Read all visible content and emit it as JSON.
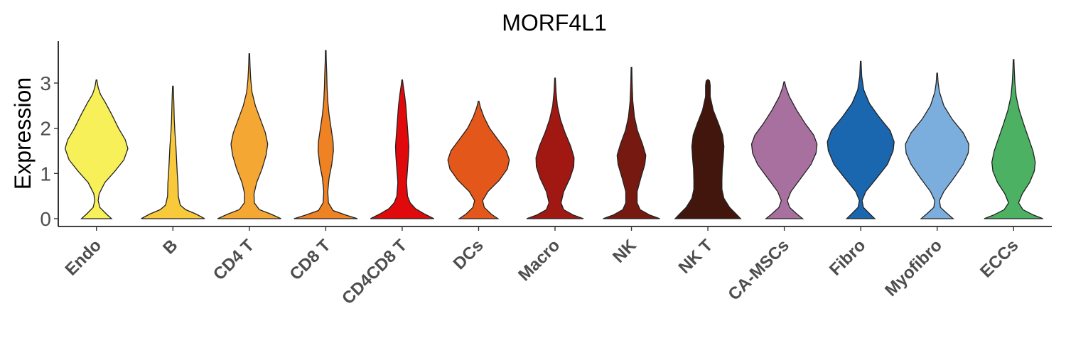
{
  "chart_data": {
    "type": "violin",
    "title": "MORF4L1",
    "xlabel": "",
    "ylabel": "Expression",
    "ylim": [
      -0.2,
      3.75
    ],
    "yticks": [
      0,
      1,
      2,
      3
    ],
    "grid": false,
    "legend": "none",
    "categories": [
      "Endo",
      "B",
      "CD4 T",
      "CD8 T",
      "CD4CD8 T",
      "DCs",
      "Macro",
      "NK",
      "NK T",
      "CA-MSCs",
      "Fibro",
      "Myofibro",
      "ECCs"
    ],
    "colors": [
      "#F7F058",
      "#F9C93C",
      "#F5A733",
      "#EF8223",
      "#E00A0C",
      "#E4571B",
      "#A11812",
      "#761A11",
      "#42160D",
      "#A8709F",
      "#1A66AF",
      "#7CAEDD",
      "#4CB162"
    ],
    "violins": [
      {
        "name": "Endo",
        "max": 3.07,
        "density": [
          [
            0,
            0.45
          ],
          [
            0.1,
            0.3
          ],
          [
            0.25,
            0.1
          ],
          [
            0.4,
            0.05
          ],
          [
            0.55,
            0.08
          ],
          [
            0.8,
            0.25
          ],
          [
            1.05,
            0.55
          ],
          [
            1.3,
            0.82
          ],
          [
            1.55,
            0.94
          ],
          [
            1.75,
            0.86
          ],
          [
            2.0,
            0.66
          ],
          [
            2.3,
            0.46
          ],
          [
            2.55,
            0.28
          ],
          [
            2.75,
            0.12
          ],
          [
            2.9,
            0.05
          ],
          [
            3.07,
            0.01
          ]
        ]
      },
      {
        "name": "B",
        "max": 2.93,
        "density": [
          [
            0,
            0.95
          ],
          [
            0.1,
            0.7
          ],
          [
            0.2,
            0.38
          ],
          [
            0.3,
            0.22
          ],
          [
            0.5,
            0.16
          ],
          [
            0.8,
            0.15
          ],
          [
            1.0,
            0.13
          ],
          [
            1.3,
            0.11
          ],
          [
            1.6,
            0.09
          ],
          [
            1.9,
            0.06
          ],
          [
            2.2,
            0.04
          ],
          [
            2.5,
            0.03
          ],
          [
            2.75,
            0.02
          ],
          [
            2.93,
            0.01
          ]
        ]
      },
      {
        "name": "CD4 T",
        "max": 3.65,
        "density": [
          [
            0,
            0.95
          ],
          [
            0.1,
            0.65
          ],
          [
            0.2,
            0.3
          ],
          [
            0.35,
            0.15
          ],
          [
            0.55,
            0.14
          ],
          [
            0.8,
            0.22
          ],
          [
            1.1,
            0.38
          ],
          [
            1.4,
            0.5
          ],
          [
            1.65,
            0.55
          ],
          [
            1.9,
            0.48
          ],
          [
            2.2,
            0.33
          ],
          [
            2.5,
            0.18
          ],
          [
            2.8,
            0.08
          ],
          [
            3.1,
            0.04
          ],
          [
            3.4,
            0.02
          ],
          [
            3.65,
            0.01
          ]
        ]
      },
      {
        "name": "CD8 T",
        "max": 3.72,
        "density": [
          [
            0,
            0.95
          ],
          [
            0.08,
            0.6
          ],
          [
            0.18,
            0.22
          ],
          [
            0.35,
            0.08
          ],
          [
            0.6,
            0.06
          ],
          [
            0.9,
            0.1
          ],
          [
            1.2,
            0.18
          ],
          [
            1.5,
            0.23
          ],
          [
            1.7,
            0.22
          ],
          [
            2.0,
            0.16
          ],
          [
            2.3,
            0.1
          ],
          [
            2.6,
            0.06
          ],
          [
            2.9,
            0.04
          ],
          [
            3.2,
            0.03
          ],
          [
            3.5,
            0.015
          ],
          [
            3.72,
            0.01
          ]
        ]
      },
      {
        "name": "CD4CD8 T",
        "max": 3.07,
        "density": [
          [
            0,
            0.95
          ],
          [
            0.1,
            0.68
          ],
          [
            0.22,
            0.4
          ],
          [
            0.35,
            0.24
          ],
          [
            0.5,
            0.16
          ],
          [
            0.8,
            0.13
          ],
          [
            1.1,
            0.16
          ],
          [
            1.4,
            0.19
          ],
          [
            1.6,
            0.2
          ],
          [
            1.9,
            0.17
          ],
          [
            2.2,
            0.14
          ],
          [
            2.5,
            0.11
          ],
          [
            2.75,
            0.07
          ],
          [
            2.95,
            0.03
          ],
          [
            3.07,
            0.01
          ]
        ]
      },
      {
        "name": "DCs",
        "max": 2.6,
        "density": [
          [
            0,
            0.58
          ],
          [
            0.1,
            0.38
          ],
          [
            0.25,
            0.17
          ],
          [
            0.4,
            0.12
          ],
          [
            0.6,
            0.28
          ],
          [
            0.85,
            0.62
          ],
          [
            1.1,
            0.86
          ],
          [
            1.3,
            0.92
          ],
          [
            1.5,
            0.83
          ],
          [
            1.75,
            0.58
          ],
          [
            2.0,
            0.33
          ],
          [
            2.25,
            0.16
          ],
          [
            2.45,
            0.06
          ],
          [
            2.6,
            0.01
          ]
        ]
      },
      {
        "name": "Macro",
        "max": 3.11,
        "density": [
          [
            0,
            0.85
          ],
          [
            0.08,
            0.55
          ],
          [
            0.2,
            0.26
          ],
          [
            0.35,
            0.18
          ],
          [
            0.6,
            0.26
          ],
          [
            0.9,
            0.45
          ],
          [
            1.15,
            0.56
          ],
          [
            1.35,
            0.57
          ],
          [
            1.6,
            0.47
          ],
          [
            1.9,
            0.3
          ],
          [
            2.2,
            0.16
          ],
          [
            2.5,
            0.07
          ],
          [
            2.8,
            0.03
          ],
          [
            3.11,
            0.01
          ]
        ]
      },
      {
        "name": "NK",
        "max": 3.35,
        "density": [
          [
            0,
            0.85
          ],
          [
            0.08,
            0.55
          ],
          [
            0.2,
            0.26
          ],
          [
            0.35,
            0.17
          ],
          [
            0.6,
            0.17
          ],
          [
            0.9,
            0.28
          ],
          [
            1.2,
            0.4
          ],
          [
            1.4,
            0.43
          ],
          [
            1.65,
            0.33
          ],
          [
            1.95,
            0.18
          ],
          [
            2.25,
            0.09
          ],
          [
            2.6,
            0.04
          ],
          [
            3.0,
            0.02
          ],
          [
            3.35,
            0.01
          ]
        ]
      },
      {
        "name": "NK T",
        "max": 3.08,
        "density": [
          [
            0,
            0.98
          ],
          [
            0.1,
            0.85
          ],
          [
            0.25,
            0.65
          ],
          [
            0.45,
            0.48
          ],
          [
            0.65,
            0.42
          ],
          [
            0.85,
            0.42
          ],
          [
            1.1,
            0.43
          ],
          [
            1.35,
            0.46
          ],
          [
            1.6,
            0.48
          ],
          [
            1.85,
            0.44
          ],
          [
            2.1,
            0.32
          ],
          [
            2.4,
            0.16
          ],
          [
            2.7,
            0.07
          ],
          [
            2.95,
            0.07
          ],
          [
            3.05,
            0.05
          ],
          [
            3.08,
            0.0
          ]
        ]
      },
      {
        "name": "CA-MSCs",
        "max": 3.03,
        "density": [
          [
            0,
            0.55
          ],
          [
            0.1,
            0.38
          ],
          [
            0.25,
            0.16
          ],
          [
            0.4,
            0.09
          ],
          [
            0.6,
            0.2
          ],
          [
            0.9,
            0.5
          ],
          [
            1.2,
            0.8
          ],
          [
            1.45,
            0.95
          ],
          [
            1.65,
            0.98
          ],
          [
            1.85,
            0.88
          ],
          [
            2.1,
            0.63
          ],
          [
            2.4,
            0.37
          ],
          [
            2.7,
            0.15
          ],
          [
            2.9,
            0.05
          ],
          [
            3.03,
            0.01
          ]
        ]
      },
      {
        "name": "Fibro",
        "max": 3.48,
        "density": [
          [
            0,
            0.42
          ],
          [
            0.1,
            0.28
          ],
          [
            0.25,
            0.08
          ],
          [
            0.4,
            0.04
          ],
          [
            0.6,
            0.15
          ],
          [
            0.9,
            0.48
          ],
          [
            1.2,
            0.8
          ],
          [
            1.5,
            0.97
          ],
          [
            1.7,
            1.0
          ],
          [
            1.95,
            0.88
          ],
          [
            2.25,
            0.55
          ],
          [
            2.55,
            0.26
          ],
          [
            2.85,
            0.09
          ],
          [
            3.15,
            0.03
          ],
          [
            3.48,
            0.01
          ]
        ]
      },
      {
        "name": "Myofibro",
        "max": 3.22,
        "density": [
          [
            0,
            0.48
          ],
          [
            0.1,
            0.32
          ],
          [
            0.25,
            0.1
          ],
          [
            0.4,
            0.07
          ],
          [
            0.6,
            0.2
          ],
          [
            0.9,
            0.5
          ],
          [
            1.2,
            0.78
          ],
          [
            1.45,
            0.93
          ],
          [
            1.65,
            0.95
          ],
          [
            1.9,
            0.78
          ],
          [
            2.2,
            0.45
          ],
          [
            2.5,
            0.2
          ],
          [
            2.8,
            0.07
          ],
          [
            3.0,
            0.03
          ],
          [
            3.22,
            0.01
          ]
        ]
      },
      {
        "name": "ECCs",
        "max": 3.52,
        "density": [
          [
            0,
            0.88
          ],
          [
            0.08,
            0.6
          ],
          [
            0.2,
            0.28
          ],
          [
            0.35,
            0.15
          ],
          [
            0.55,
            0.26
          ],
          [
            0.8,
            0.48
          ],
          [
            1.05,
            0.62
          ],
          [
            1.25,
            0.65
          ],
          [
            1.5,
            0.58
          ],
          [
            1.8,
            0.44
          ],
          [
            2.1,
            0.3
          ],
          [
            2.4,
            0.17
          ],
          [
            2.7,
            0.08
          ],
          [
            3.0,
            0.04
          ],
          [
            3.3,
            0.02
          ],
          [
            3.52,
            0.01
          ]
        ]
      }
    ]
  }
}
